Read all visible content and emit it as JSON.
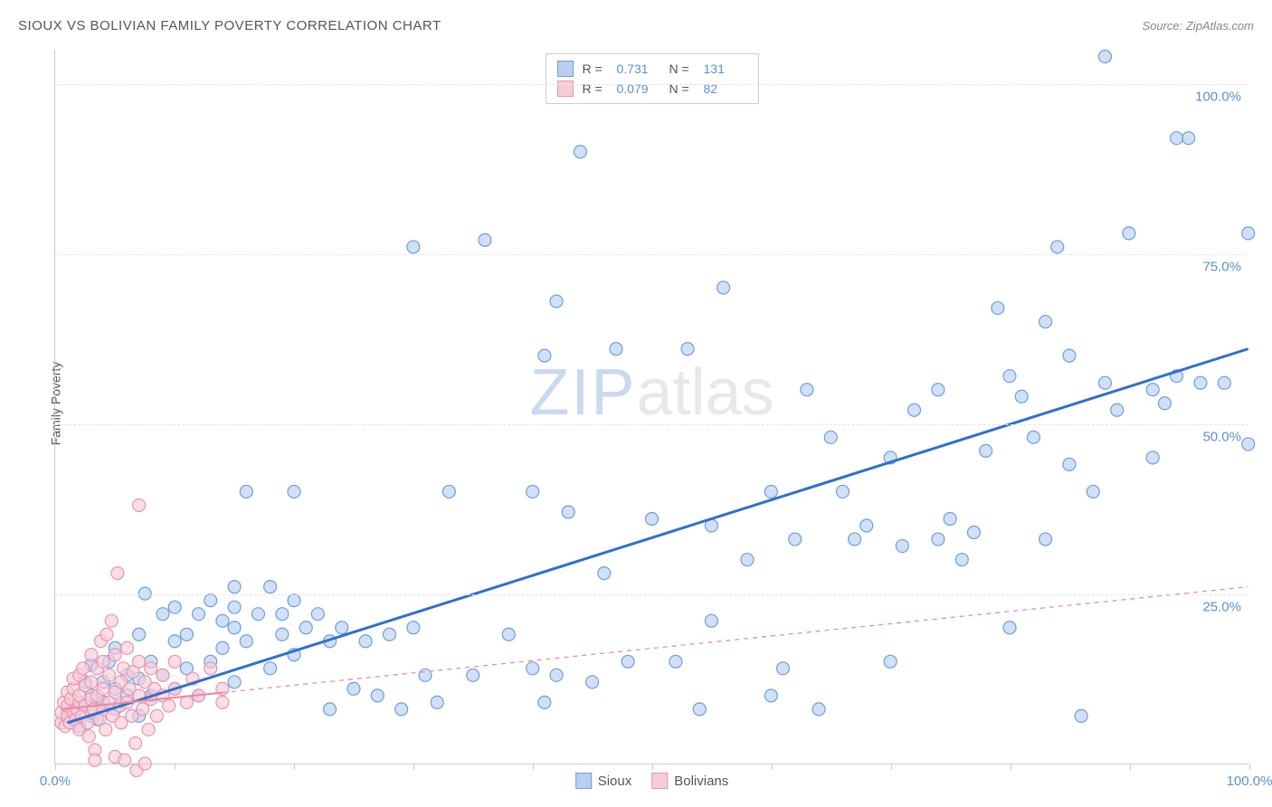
{
  "header": {
    "title": "SIOUX VS BOLIVIAN FAMILY POVERTY CORRELATION CHART",
    "source": "Source: ZipAtlas.com"
  },
  "watermark": {
    "part1": "ZIP",
    "part2": "atlas"
  },
  "chart": {
    "type": "scatter",
    "ylabel": "Family Poverty",
    "xlim": [
      0,
      100
    ],
    "ylim": [
      0,
      105
    ],
    "x_ticks": [
      0,
      10,
      20,
      30,
      40,
      50,
      60,
      70,
      80,
      90,
      100
    ],
    "x_tick_labels": {
      "0": "0.0%",
      "100": "100.0%"
    },
    "y_gridlines": [
      25,
      50,
      75,
      100
    ],
    "y_tick_labels": {
      "25": "25.0%",
      "50": "50.0%",
      "75": "75.0%",
      "100": "100.0%"
    },
    "background_color": "#ffffff",
    "grid_color": "#e5e5e5",
    "axis_color": "#cccccc",
    "tick_label_color": "#5b8fd6",
    "axis_label_color": "#555555",
    "marker_radius": 7,
    "marker_stroke_width": 1.2,
    "series": [
      {
        "name": "Sioux",
        "fill_color": "#b8d0ee",
        "stroke_color": "#6b9fe0",
        "trend_color": "#2f6fd0",
        "trend_style": "solid",
        "trend_width": 3,
        "trend_p1": [
          1,
          6
        ],
        "trend_p2": [
          100,
          61
        ],
        "r": "0.731",
        "n": "131",
        "points": [
          [
            1,
            6.5
          ],
          [
            1,
            8
          ],
          [
            2,
            5.5
          ],
          [
            2,
            9
          ],
          [
            2.5,
            12
          ],
          [
            3,
            7
          ],
          [
            3,
            10
          ],
          [
            3,
            14.5
          ],
          [
            3.5,
            6.5
          ],
          [
            4,
            9
          ],
          [
            4,
            12
          ],
          [
            4.5,
            15
          ],
          [
            5,
            8
          ],
          [
            5,
            11
          ],
          [
            5,
            17
          ],
          [
            6,
            10
          ],
          [
            6,
            13
          ],
          [
            7,
            7
          ],
          [
            7,
            12.5
          ],
          [
            7,
            19
          ],
          [
            7.5,
            25
          ],
          [
            8,
            10
          ],
          [
            8,
            15
          ],
          [
            9,
            13
          ],
          [
            9,
            22
          ],
          [
            10,
            11
          ],
          [
            10,
            18
          ],
          [
            10,
            23
          ],
          [
            11,
            14
          ],
          [
            11,
            19
          ],
          [
            12,
            10
          ],
          [
            12,
            22
          ],
          [
            13,
            15
          ],
          [
            13,
            24
          ],
          [
            14,
            17
          ],
          [
            14,
            21
          ],
          [
            15,
            12
          ],
          [
            15,
            20
          ],
          [
            15,
            23
          ],
          [
            15,
            26
          ],
          [
            16,
            18
          ],
          [
            16,
            40
          ],
          [
            17,
            22
          ],
          [
            18,
            14
          ],
          [
            18,
            26
          ],
          [
            19,
            19
          ],
          [
            19,
            22
          ],
          [
            20,
            16
          ],
          [
            20,
            24
          ],
          [
            20,
            40
          ],
          [
            21,
            20
          ],
          [
            22,
            22
          ],
          [
            23,
            18
          ],
          [
            23,
            8
          ],
          [
            24,
            20
          ],
          [
            25,
            11
          ],
          [
            26,
            18
          ],
          [
            27,
            10
          ],
          [
            28,
            19
          ],
          [
            29,
            8
          ],
          [
            30,
            20
          ],
          [
            30,
            76
          ],
          [
            31,
            13
          ],
          [
            32,
            9
          ],
          [
            33,
            40
          ],
          [
            35,
            13
          ],
          [
            36,
            77
          ],
          [
            38,
            19
          ],
          [
            40,
            14
          ],
          [
            40,
            40
          ],
          [
            41,
            9
          ],
          [
            41,
            60
          ],
          [
            42,
            13
          ],
          [
            42,
            68
          ],
          [
            43,
            37
          ],
          [
            44,
            90
          ],
          [
            45,
            12
          ],
          [
            46,
            28
          ],
          [
            47,
            61
          ],
          [
            48,
            15
          ],
          [
            50,
            36
          ],
          [
            52,
            15
          ],
          [
            53,
            61
          ],
          [
            54,
            8
          ],
          [
            55,
            35
          ],
          [
            55,
            21
          ],
          [
            56,
            70
          ],
          [
            58,
            30
          ],
          [
            60,
            10
          ],
          [
            60,
            40
          ],
          [
            61,
            14
          ],
          [
            62,
            33
          ],
          [
            63,
            55
          ],
          [
            64,
            8
          ],
          [
            65,
            48
          ],
          [
            66,
            40
          ],
          [
            67,
            33
          ],
          [
            68,
            35
          ],
          [
            70,
            15
          ],
          [
            70,
            45
          ],
          [
            71,
            32
          ],
          [
            72,
            52
          ],
          [
            74,
            33
          ],
          [
            74,
            55
          ],
          [
            75,
            36
          ],
          [
            76,
            30
          ],
          [
            77,
            34
          ],
          [
            78,
            46
          ],
          [
            79,
            67
          ],
          [
            80,
            57
          ],
          [
            80,
            20
          ],
          [
            81,
            54
          ],
          [
            82,
            48
          ],
          [
            83,
            33
          ],
          [
            83,
            65
          ],
          [
            84,
            76
          ],
          [
            85,
            44
          ],
          [
            85,
            60
          ],
          [
            86,
            7
          ],
          [
            87,
            40
          ],
          [
            88,
            56
          ],
          [
            88,
            104
          ],
          [
            89,
            52
          ],
          [
            90,
            78
          ],
          [
            92,
            55
          ],
          [
            92,
            45
          ],
          [
            93,
            53
          ],
          [
            94,
            57
          ],
          [
            94,
            92
          ],
          [
            95,
            92
          ],
          [
            96,
            56
          ],
          [
            98,
            56
          ],
          [
            100,
            78
          ],
          [
            100,
            47
          ]
        ]
      },
      {
        "name": "Bolivians",
        "fill_color": "#f7cdd8",
        "stroke_color": "#ea95ab",
        "trend_color": "#e88ba2",
        "trend_style": "dashed",
        "trend_width": 1.3,
        "trend_solid_until": 14,
        "trend_p1": [
          0.5,
          8
        ],
        "trend_p2": [
          100,
          26
        ],
        "r": "0.079",
        "n": "82",
        "points": [
          [
            0.5,
            6
          ],
          [
            0.5,
            7.5
          ],
          [
            0.7,
            9
          ],
          [
            0.8,
            5.5
          ],
          [
            1,
            7
          ],
          [
            1,
            8.5
          ],
          [
            1,
            10.5
          ],
          [
            1.2,
            6
          ],
          [
            1.3,
            9.5
          ],
          [
            1.5,
            7.5
          ],
          [
            1.5,
            11
          ],
          [
            1.5,
            12.5
          ],
          [
            1.7,
            6.5
          ],
          [
            1.8,
            8
          ],
          [
            2,
            5
          ],
          [
            2,
            9
          ],
          [
            2,
            10
          ],
          [
            2,
            13
          ],
          [
            2.2,
            7
          ],
          [
            2.3,
            14
          ],
          [
            2.5,
            8.5
          ],
          [
            2.5,
            11.5
          ],
          [
            2.7,
            6
          ],
          [
            2.8,
            4
          ],
          [
            3,
            7.5
          ],
          [
            3,
            9.5
          ],
          [
            3,
            12
          ],
          [
            3,
            16
          ],
          [
            3.2,
            8
          ],
          [
            3.3,
            2
          ],
          [
            3.3,
            0.5
          ],
          [
            3.5,
            10
          ],
          [
            3.5,
            14
          ],
          [
            3.7,
            6.5
          ],
          [
            3.8,
            18
          ],
          [
            4,
            8
          ],
          [
            4,
            11
          ],
          [
            4,
            15
          ],
          [
            4.2,
            5
          ],
          [
            4.3,
            19
          ],
          [
            4.5,
            9
          ],
          [
            4.5,
            13
          ],
          [
            4.7,
            21
          ],
          [
            4.8,
            7
          ],
          [
            5,
            10.5
          ],
          [
            5,
            16
          ],
          [
            5,
            1
          ],
          [
            5.2,
            28
          ],
          [
            5.4,
            8.5
          ],
          [
            5.5,
            12
          ],
          [
            5.5,
            6
          ],
          [
            5.7,
            14
          ],
          [
            5.8,
            0.5
          ],
          [
            6,
            9
          ],
          [
            6,
            17
          ],
          [
            6.2,
            11
          ],
          [
            6.4,
            7
          ],
          [
            6.5,
            13.5
          ],
          [
            6.7,
            3
          ],
          [
            6.8,
            -1
          ],
          [
            7,
            10
          ],
          [
            7,
            15
          ],
          [
            7,
            38
          ],
          [
            7.3,
            8
          ],
          [
            7.5,
            12
          ],
          [
            7.5,
            0
          ],
          [
            7.8,
            5
          ],
          [
            8,
            9.5
          ],
          [
            8,
            14
          ],
          [
            8.3,
            11
          ],
          [
            8.5,
            7
          ],
          [
            9,
            10
          ],
          [
            9,
            13
          ],
          [
            9.5,
            8.5
          ],
          [
            10,
            11
          ],
          [
            10,
            15
          ],
          [
            11,
            9
          ],
          [
            11.5,
            12.5
          ],
          [
            12,
            10
          ],
          [
            13,
            14
          ],
          [
            14,
            11
          ],
          [
            14,
            9
          ]
        ]
      }
    ],
    "legend_bottom": [
      {
        "label": "Sioux",
        "fill": "#b8d0ee",
        "stroke": "#6b9fe0"
      },
      {
        "label": "Bolivians",
        "fill": "#f7cdd8",
        "stroke": "#ea95ab"
      }
    ]
  }
}
